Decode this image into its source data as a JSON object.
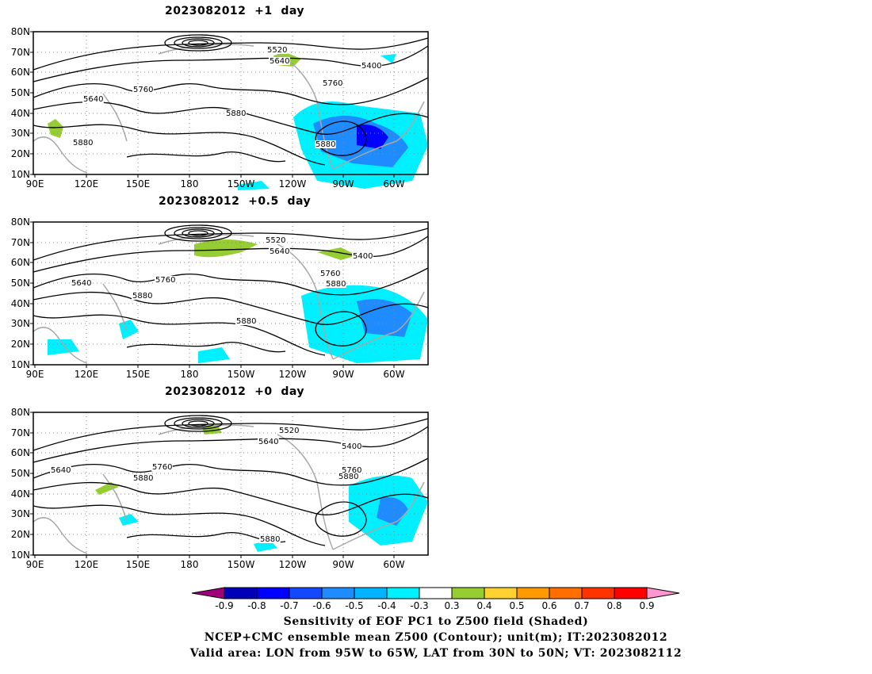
{
  "chart_data": {
    "type": "map",
    "panels": [
      {
        "title": "2023082012  +1  day",
        "lat_ticks": [
          "80N",
          "70N",
          "60N",
          "50N",
          "40N",
          "30N",
          "20N",
          "10N"
        ],
        "lon_ticks": [
          "90E",
          "120E",
          "150E",
          "180",
          "150W",
          "120W",
          "90W",
          "60W"
        ],
        "contour_labels": [
          "5520",
          "5640",
          "5400",
          "5760",
          "5640",
          "5760",
          "5880",
          "5880",
          "5880"
        ]
      },
      {
        "title": "2023082012  +0.5  day",
        "lat_ticks": [
          "80N",
          "70N",
          "60N",
          "50N",
          "40N",
          "30N",
          "20N",
          "10N"
        ],
        "lon_ticks": [
          "90E",
          "120E",
          "150E",
          "180",
          "150W",
          "120W",
          "90W",
          "60W"
        ],
        "contour_labels": [
          "5520",
          "5640",
          "5400",
          "5640",
          "5760",
          "5760",
          "5880",
          "5880",
          "5880"
        ]
      },
      {
        "title": "2023082012  +0  day",
        "lat_ticks": [
          "80N",
          "70N",
          "60N",
          "50N",
          "40N",
          "30N",
          "20N",
          "10N"
        ],
        "lon_ticks": [
          "90E",
          "120E",
          "150E",
          "180",
          "150W",
          "120W",
          "90W",
          "60W"
        ],
        "contour_labels": [
          "5520",
          "5640",
          "5400",
          "5640",
          "5760",
          "5760",
          "5880",
          "5880",
          "5880"
        ]
      }
    ],
    "colorbar": {
      "labels": [
        "-0.9",
        "-0.8",
        "-0.7",
        "-0.6",
        "-0.5",
        "-0.4",
        "-0.3",
        "0.3",
        "0.4",
        "0.5",
        "0.6",
        "0.7",
        "0.8",
        "0.9"
      ],
      "colors": [
        "#a0007a",
        "#0000b8",
        "#0000ff",
        "#1448ff",
        "#1e8cff",
        "#00b4ff",
        "#00f0ff",
        "#ffffff",
        "#96cd32",
        "#ffd232",
        "#ff9a00",
        "#ff6e00",
        "#ff3200",
        "#ff0000",
        "#ff96d2"
      ]
    },
    "shading_colors": {
      "negative": "#1e8cff",
      "negative_light": "#00f0ff",
      "negative_deep": "#0000ff",
      "positive": "#96cd32"
    },
    "caption": [
      "Sensitivity of EOF PC1 to Z500 field (Shaded)",
      "NCEP+CMC ensemble mean Z500 (Contour); unit(m); IT:2023082012",
      "Valid area: LON from 95W to 65W, LAT from 30N to 50N; VT: 2023082112"
    ]
  }
}
